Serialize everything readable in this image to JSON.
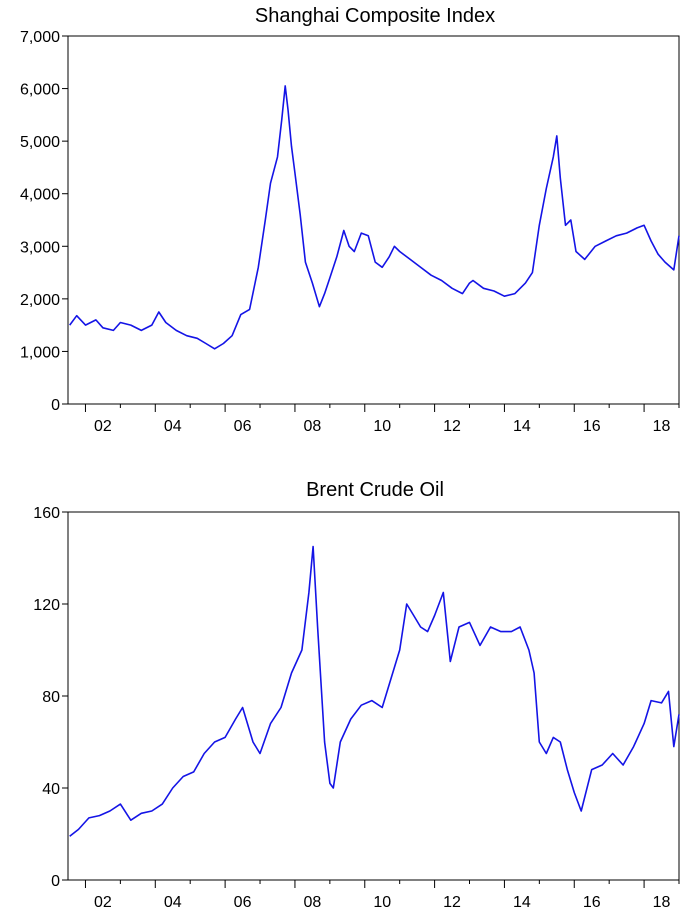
{
  "chart_data": [
    {
      "type": "line",
      "title": "Shanghai Composite Index",
      "xlabel": "",
      "ylabel": "",
      "xlim": [
        2001.5,
        2019.0
      ],
      "ylim": [
        0,
        7000
      ],
      "yticks": [
        0,
        1000,
        2000,
        3000,
        4000,
        5000,
        6000,
        7000
      ],
      "ytick_labels": [
        "0",
        "1,000",
        "2,000",
        "3,000",
        "4,000",
        "5,000",
        "6,000",
        "7,000"
      ],
      "xticks": [
        2002,
        2004,
        2006,
        2008,
        2010,
        2012,
        2014,
        2016,
        2018
      ],
      "xtick_labels": [
        "02",
        "04",
        "06",
        "08",
        "10",
        "12",
        "14",
        "16",
        "18"
      ],
      "grid": false,
      "legend": "none",
      "color": "#1414e6",
      "series": [
        {
          "x": [
            2001.55,
            2001.75,
            2002.0,
            2002.3,
            2002.5,
            2002.8,
            2003.0,
            2003.3,
            2003.6,
            2003.9,
            2004.1,
            2004.3,
            2004.6,
            2004.9,
            2005.2,
            2005.45,
            2005.7,
            2005.95,
            2006.2,
            2006.45,
            2006.7,
            2006.95,
            2007.15,
            2007.3,
            2007.5,
            2007.62,
            2007.72,
            2007.8,
            2007.9,
            2008.0,
            2008.15,
            2008.3,
            2008.5,
            2008.7,
            2008.85,
            2009.0,
            2009.2,
            2009.4,
            2009.55,
            2009.7,
            2009.9,
            2010.1,
            2010.3,
            2010.5,
            2010.7,
            2010.85,
            2011.0,
            2011.3,
            2011.6,
            2011.9,
            2012.2,
            2012.5,
            2012.8,
            2013.0,
            2013.1,
            2013.4,
            2013.7,
            2014.0,
            2014.3,
            2014.6,
            2014.8,
            2015.0,
            2015.2,
            2015.4,
            2015.5,
            2015.6,
            2015.75,
            2015.9,
            2016.05,
            2016.3,
            2016.6,
            2016.9,
            2017.2,
            2017.5,
            2017.8,
            2018.0,
            2018.2,
            2018.4,
            2018.6,
            2018.85,
            2019.0
          ],
          "y": [
            1500,
            1680,
            1500,
            1600,
            1450,
            1400,
            1550,
            1500,
            1400,
            1500,
            1750,
            1550,
            1400,
            1300,
            1250,
            1150,
            1050,
            1150,
            1300,
            1700,
            1800,
            2600,
            3500,
            4200,
            4700,
            5400,
            6050,
            5600,
            4900,
            4400,
            3600,
            2700,
            2300,
            1850,
            2100,
            2400,
            2800,
            3300,
            3000,
            2900,
            3250,
            3200,
            2700,
            2600,
            2800,
            3000,
            2900,
            2750,
            2600,
            2450,
            2350,
            2200,
            2100,
            2300,
            2350,
            2200,
            2150,
            2050,
            2100,
            2300,
            2500,
            3400,
            4100,
            4700,
            5100,
            4300,
            3400,
            3500,
            2900,
            2750,
            3000,
            3100,
            3200,
            3250,
            3350,
            3400,
            3100,
            2850,
            2700,
            2550,
            3200
          ]
        }
      ]
    },
    {
      "type": "line",
      "title": "Brent Crude Oil",
      "xlabel": "",
      "ylabel": "",
      "xlim": [
        2001.5,
        2019.0
      ],
      "ylim": [
        0,
        160
      ],
      "yticks": [
        0,
        40,
        80,
        120,
        160
      ],
      "ytick_labels": [
        "0",
        "40",
        "80",
        "120",
        "160"
      ],
      "xticks": [
        2002,
        2004,
        2006,
        2008,
        2010,
        2012,
        2014,
        2016,
        2018
      ],
      "xtick_labels": [
        "02",
        "04",
        "06",
        "08",
        "10",
        "12",
        "14",
        "16",
        "18"
      ],
      "grid": false,
      "legend": "none",
      "color": "#1414e6",
      "series": [
        {
          "x": [
            2001.55,
            2001.8,
            2002.1,
            2002.4,
            2002.7,
            2003.0,
            2003.3,
            2003.6,
            2003.9,
            2004.2,
            2004.5,
            2004.8,
            2005.1,
            2005.4,
            2005.7,
            2006.0,
            2006.3,
            2006.5,
            2006.8,
            2007.0,
            2007.3,
            2007.6,
            2007.9,
            2008.2,
            2008.4,
            2008.52,
            2008.65,
            2008.85,
            2009.0,
            2009.1,
            2009.3,
            2009.6,
            2009.9,
            2010.2,
            2010.5,
            2010.8,
            2011.0,
            2011.2,
            2011.4,
            2011.6,
            2011.8,
            2012.0,
            2012.25,
            2012.45,
            2012.7,
            2013.0,
            2013.3,
            2013.6,
            2013.9,
            2014.2,
            2014.45,
            2014.7,
            2014.85,
            2015.0,
            2015.2,
            2015.4,
            2015.6,
            2015.8,
            2016.0,
            2016.2,
            2016.5,
            2016.8,
            2017.1,
            2017.4,
            2017.7,
            2018.0,
            2018.2,
            2018.5,
            2018.7,
            2018.85,
            2019.0
          ],
          "y": [
            19,
            22,
            27,
            28,
            30,
            33,
            26,
            29,
            30,
            33,
            40,
            45,
            47,
            55,
            60,
            62,
            70,
            75,
            60,
            55,
            68,
            75,
            90,
            100,
            125,
            145,
            110,
            60,
            42,
            40,
            60,
            70,
            76,
            78,
            75,
            90,
            100,
            120,
            115,
            110,
            108,
            115,
            125,
            95,
            110,
            112,
            102,
            110,
            108,
            108,
            110,
            100,
            90,
            60,
            55,
            62,
            60,
            48,
            38,
            30,
            48,
            50,
            55,
            50,
            58,
            68,
            78,
            77,
            82,
            58,
            72
          ]
        }
      ]
    }
  ]
}
